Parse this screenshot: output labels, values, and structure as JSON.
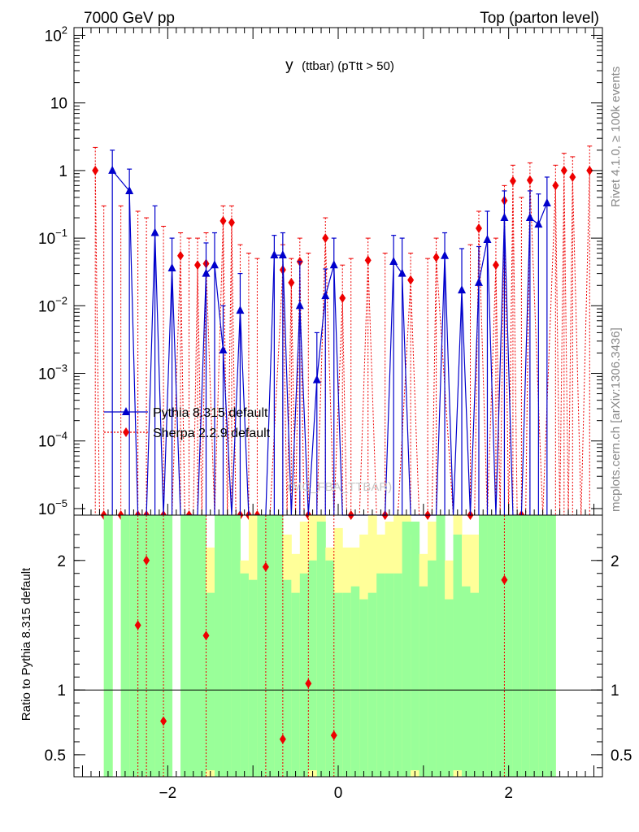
{
  "header": {
    "left": "7000 GeV pp",
    "right": "Top (parton level)"
  },
  "side_labels": {
    "rivet": "Rivet 4.1.0, ≥ 100k events",
    "mcplots": "mcplots.cern.ch [arXiv:1306.3436]"
  },
  "colors": {
    "pythia": "#0000cc",
    "sherpa": "#ee0000",
    "band_green": "#99ff99",
    "band_yellow": "#ffff99"
  },
  "chart_data": [
    {
      "type": "scatter",
      "title": "y (ttbar) (pTtt > 50)",
      "title_main": "y",
      "title_rest": "(ttbar) (pTtt > 50)",
      "watermark": "(MC_FBA_TTBAR)",
      "xlabel": "",
      "ylabel": "",
      "yscale": "log",
      "xlim": [
        -3.1,
        3.1
      ],
      "ylim": [
        8e-06,
        130
      ],
      "y_ticks": [
        {
          "v": 1e-05,
          "b": "10",
          "e": "−5"
        },
        {
          "v": 0.0001,
          "b": "10",
          "e": "−4"
        },
        {
          "v": 0.001,
          "b": "10",
          "e": "−3"
        },
        {
          "v": 0.01,
          "b": "10",
          "e": "−2"
        },
        {
          "v": 0.1,
          "b": "10",
          "e": "−1"
        },
        {
          "v": 1,
          "b": "1",
          "e": ""
        },
        {
          "v": 10,
          "b": "10",
          "e": ""
        },
        {
          "v": 100,
          "b": "10",
          "e": "2"
        }
      ],
      "legend": [
        {
          "name": "Pythia 8.315 default",
          "marker": "triangle"
        },
        {
          "name": "Sherpa 2.2.9 default",
          "marker": "diamond"
        }
      ],
      "series": [
        {
          "name": "Pythia 8.315 default",
          "marker": "triangle",
          "points": [
            [
              -2.65,
              1.0,
              2.0
            ],
            [
              -2.45,
              0.5,
              1.05
            ],
            [
              -2.35,
              0,
              0
            ],
            [
              -2.25,
              0,
              0
            ],
            [
              -2.15,
              0.12,
              0.3
            ],
            [
              -2.05,
              0,
              0
            ],
            [
              -1.95,
              0.036,
              0.1
            ],
            [
              -1.85,
              0,
              0
            ],
            [
              -1.75,
              0,
              0
            ],
            [
              -1.65,
              0,
              0
            ],
            [
              -1.55,
              0.03,
              0.085
            ],
            [
              -1.45,
              0.04,
              0.12
            ],
            [
              -1.35,
              0.0022,
              0.01
            ],
            [
              -1.25,
              0,
              0
            ],
            [
              -1.15,
              0.0085,
              0.03
            ],
            [
              -1.05,
              0,
              0
            ],
            [
              -0.95,
              0,
              0
            ],
            [
              -0.85,
              0,
              0
            ],
            [
              -0.75,
              0.056,
              0.11
            ],
            [
              -0.65,
              0.056,
              0.12
            ],
            [
              -0.55,
              0,
              0
            ],
            [
              -0.45,
              0.01,
              0.045
            ],
            [
              -0.35,
              0,
              0
            ],
            [
              -0.25,
              0.0008,
              0.004
            ],
            [
              -0.15,
              0.014,
              0.035
            ],
            [
              -0.05,
              0.04,
              0.1
            ],
            [
              0.05,
              0,
              0
            ],
            [
              0.15,
              0,
              0
            ],
            [
              0.25,
              0,
              0
            ],
            [
              0.35,
              0,
              0
            ],
            [
              0.45,
              0,
              0
            ],
            [
              0.55,
              0,
              0
            ],
            [
              0.65,
              0.045,
              0.11
            ],
            [
              0.75,
              0.03,
              0.1
            ],
            [
              0.85,
              0,
              0
            ],
            [
              0.95,
              0,
              0
            ],
            [
              1.05,
              0,
              0
            ],
            [
              1.15,
              0,
              0
            ],
            [
              1.25,
              0.055,
              0.12
            ],
            [
              1.35,
              0,
              0
            ],
            [
              1.45,
              0.017,
              0.07
            ],
            [
              1.55,
              0,
              0
            ],
            [
              1.65,
              0.022,
              0.075
            ],
            [
              1.75,
              0.095,
              0.25
            ],
            [
              1.85,
              0,
              0
            ],
            [
              1.95,
              0.2,
              0.5
            ],
            [
              2.05,
              0,
              0
            ],
            [
              2.15,
              0,
              0
            ],
            [
              2.25,
              0.2,
              0.5
            ],
            [
              2.35,
              0.16,
              0.45
            ],
            [
              2.45,
              0.33,
              0.8
            ]
          ]
        },
        {
          "name": "Sherpa 2.2.9 default",
          "marker": "diamond",
          "points": [
            [
              -2.85,
              1.0,
              2.2
            ],
            [
              -2.75,
              0,
              0.3
            ],
            [
              -2.55,
              0,
              0.3
            ],
            [
              -2.35,
              0,
              0.25
            ],
            [
              -2.25,
              0,
              0.2
            ],
            [
              -2.05,
              0,
              0.15
            ],
            [
              -1.85,
              0.055,
              0.12
            ],
            [
              -1.75,
              0,
              0.1
            ],
            [
              -1.65,
              0.04,
              0.1
            ],
            [
              -1.55,
              0.042,
              0.12
            ],
            [
              -1.35,
              0.18,
              0.3
            ],
            [
              -1.25,
              0.17,
              0.3
            ],
            [
              -1.15,
              0,
              0.08
            ],
            [
              -1.05,
              0,
              0.06
            ],
            [
              -0.95,
              0,
              0.05
            ],
            [
              -0.65,
              0.034,
              0.08
            ],
            [
              -0.55,
              0.022,
              0.05
            ],
            [
              -0.45,
              0.045,
              0.1
            ],
            [
              -0.35,
              0,
              0.06
            ],
            [
              -0.15,
              0.1,
              0.2
            ],
            [
              0.05,
              0.013,
              0.04
            ],
            [
              0.15,
              0,
              0.05
            ],
            [
              0.35,
              0.047,
              0.1
            ],
            [
              0.55,
              0,
              0.06
            ],
            [
              0.85,
              0.024,
              0.06
            ],
            [
              1.05,
              0,
              0.05
            ],
            [
              1.15,
              0.052,
              0.1
            ],
            [
              1.55,
              0,
              0.08
            ],
            [
              1.65,
              0.14,
              0.25
            ],
            [
              1.85,
              0.04,
              0.1
            ],
            [
              1.95,
              0.36,
              0.6
            ],
            [
              2.05,
              0.7,
              1.2
            ],
            [
              2.15,
              0,
              0.4
            ],
            [
              2.25,
              0.72,
              1.3
            ],
            [
              2.55,
              0.6,
              1.2
            ],
            [
              2.65,
              1.0,
              1.8
            ],
            [
              2.75,
              0.8,
              1.6
            ],
            [
              2.95,
              1.0,
              2.3
            ]
          ]
        }
      ]
    },
    {
      "type": "scatter",
      "title": "",
      "ylabel": "Ratio to Pythia 8.315 default",
      "ylim": [
        0.33,
        2.35
      ],
      "y_ticks": [
        {
          "v": 0.5,
          "label": "0.5"
        },
        {
          "v": 1,
          "label": "1"
        },
        {
          "v": 2,
          "label": "2"
        }
      ],
      "xlim": [
        -3.1,
        3.1
      ],
      "x_ticks": [
        {
          "v": -2,
          "label": "−2"
        },
        {
          "v": 0,
          "label": "0"
        },
        {
          "v": 2,
          "label": "2"
        }
      ],
      "reference_line": 1,
      "band_yellow_top": [
        2.4,
        2.4,
        2.4,
        2.4,
        2.4,
        2.4,
        2.4,
        2.4,
        2.4,
        2.4,
        2.4,
        2.4,
        2.1,
        2.2,
        2.3,
        2.4,
        2.0,
        2.4,
        2.4,
        2.4,
        2.4,
        2.2,
        2.05,
        2.3,
        2.4,
        2.4,
        2.1,
        2.25,
        2.1,
        2.1,
        2.2,
        2.4,
        2.2,
        2.3,
        2.4,
        2.4,
        2.2,
        2.05,
        2.3,
        2.4,
        2.0,
        2.4,
        2.2,
        2.2,
        2.4,
        2.4,
        2.4,
        2.4,
        2.4,
        2.4,
        2.4,
        2.4,
        2.4,
        2.4
      ],
      "band_green_top": [
        2.4,
        2.1,
        2.4,
        2.4,
        2.4,
        2.4,
        2.4,
        2.4,
        2.4,
        2.4,
        2.4,
        2.4,
        1.75,
        2.4,
        2.4,
        2.4,
        1.9,
        1.85,
        2.4,
        2.4,
        2.4,
        1.85,
        1.75,
        1.9,
        2.0,
        2.3,
        2.0,
        1.75,
        1.75,
        1.8,
        1.7,
        1.75,
        1.9,
        1.9,
        1.9,
        2.3,
        2.3,
        1.8,
        2.0,
        2.4,
        1.7,
        2.2,
        1.8,
        1.75,
        2.4,
        2.4,
        2.4,
        2.4,
        2.4,
        2.4,
        2.4,
        2.4,
        2.4,
        2.4
      ],
      "band_green_bottom": [
        0.2,
        0.2,
        0.2,
        0.2,
        0.2,
        0.2,
        0.2,
        0.2,
        0.2,
        0.2,
        0.2,
        0.2,
        0.38,
        0.2,
        0.2,
        0.2,
        0.2,
        0.2,
        0.2,
        0.2,
        0.2,
        0.2,
        0.2,
        0.2,
        0.38,
        0.2,
        0.2,
        0.2,
        0.2,
        0.2,
        0.2,
        0.2,
        0.2,
        0.2,
        0.2,
        0.2,
        0.38,
        0.2,
        0.2,
        0.2,
        0.2,
        0.38,
        0.2,
        0.2,
        0.2,
        0.2,
        0.2,
        0.2,
        0.2,
        0.2,
        0.2,
        0.2,
        0.2,
        0.2
      ],
      "band_bins": [
        -2.7,
        -2.5
      ],
      "band_bin_width": 0.1,
      "ratio_points": [
        [
          -2.35,
          1.5
        ],
        [
          -2.25,
          2.0
        ],
        [
          -2.05,
          0.76
        ],
        [
          -1.55,
          1.42
        ],
        [
          -0.85,
          1.95
        ],
        [
          -0.65,
          0.62
        ],
        [
          -0.35,
          1.05
        ],
        [
          -0.05,
          0.65
        ],
        [
          1.95,
          1.85
        ]
      ]
    }
  ]
}
